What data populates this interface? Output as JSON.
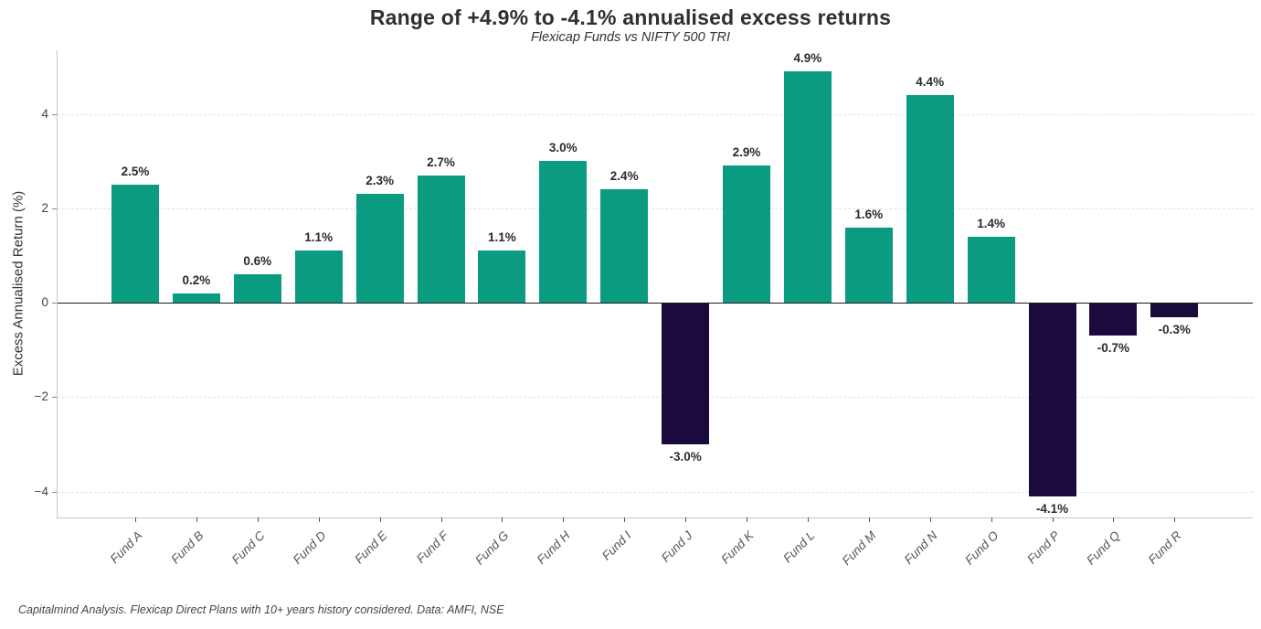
{
  "header": {
    "title": "Range of +4.9% to -4.1% annualised excess returns",
    "subtitle": "Flexicap Funds vs NIFTY 500 TRI"
  },
  "footer": {
    "note": "Capitalmind Analysis. Flexicap Direct Plans with 10+ years history considered. Data: AMFI, NSE"
  },
  "chart_data": {
    "type": "bar",
    "title": "Range of +4.9% to -4.1% annualised excess returns",
    "subtitle": "Flexicap Funds vs NIFTY 500 TRI",
    "categories": [
      "Fund A",
      "Fund B",
      "Fund C",
      "Fund D",
      "Fund E",
      "Fund F",
      "Fund G",
      "Fund H",
      "Fund I",
      "Fund J",
      "Fund K",
      "Fund L",
      "Fund M",
      "Fund N",
      "Fund O",
      "Fund P",
      "Fund Q",
      "Fund R"
    ],
    "values": [
      2.5,
      0.2,
      0.6,
      1.1,
      2.3,
      2.7,
      1.1,
      3.0,
      2.4,
      -3.0,
      2.9,
      4.9,
      1.6,
      4.4,
      1.4,
      -4.1,
      -0.7,
      -0.3
    ],
    "value_labels": [
      "2.5%",
      "0.2%",
      "0.6%",
      "1.1%",
      "2.3%",
      "2.7%",
      "1.1%",
      "3.0%",
      "2.4%",
      "-3.0%",
      "2.9%",
      "4.9%",
      "1.6%",
      "4.4%",
      "1.4%",
      "-4.1%",
      "-0.7%",
      "-0.3%"
    ],
    "xlabel": "",
    "ylabel": "Excess Annualised Return (%)",
    "yticks": [
      4,
      2,
      0,
      -2,
      -4
    ],
    "ytick_labels": [
      "4",
      "2",
      "0",
      "−2",
      "−4"
    ],
    "ylim": [
      -4.55,
      5.35
    ],
    "grid": "horizontal-dashed",
    "legend": "none",
    "colors": {
      "positive_bar": "#0A9B80",
      "negative_bar": "#1A0B3C",
      "zero_line": "#1a1a1a",
      "gridline": "#e2e2e2",
      "title_text": "#2e2e33",
      "tick_text": "#555555"
    }
  }
}
